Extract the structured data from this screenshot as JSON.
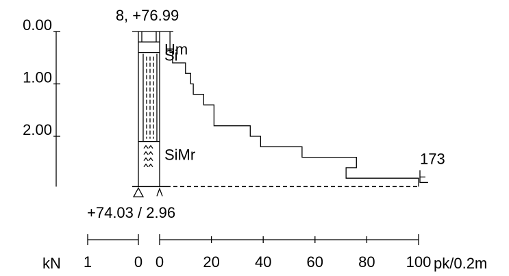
{
  "chart_data": {
    "type": "line",
    "title": "",
    "point_label": "8, +76.99",
    "bottom_label": "+74.03 / 2.96",
    "end_value_label": "173",
    "depth_axis": {
      "ticks": [
        "0.00",
        "1.00",
        "2.00"
      ],
      "tick_values": [
        0,
        1,
        2
      ],
      "range": [
        0,
        2.96
      ]
    },
    "soil_layers": [
      {
        "label": "Hm",
        "depth_from": 0.2,
        "depth_to": 0.4
      },
      {
        "label": "Si",
        "depth_from": 0.4,
        "depth_to": 2.1
      },
      {
        "label": "SiMr",
        "depth_from": 2.1,
        "depth_to": 2.96
      }
    ],
    "penetration_axis": {
      "unit": "pk/0.2m",
      "ticks": [
        "0",
        "20",
        "40",
        "60",
        "80",
        "100"
      ],
      "tick_values": [
        0,
        20,
        40,
        60,
        80,
        100
      ]
    },
    "force_axis": {
      "unit": "kN",
      "ticks": [
        "1",
        "0"
      ],
      "tick_values": [
        1,
        0
      ]
    },
    "series": [
      {
        "values_pk_per_0_2m": [
          4,
          4,
          5,
          10,
          12,
          13,
          17,
          21,
          21,
          35,
          39,
          55,
          76,
          72,
          100
        ],
        "depth_from_m": [
          0.2,
          0.4,
          0.6,
          0.8,
          1.0,
          1.2,
          1.4,
          1.6,
          1.8,
          2.0,
          2.2,
          2.4,
          2.6,
          2.8,
          2.96
        ]
      }
    ]
  }
}
